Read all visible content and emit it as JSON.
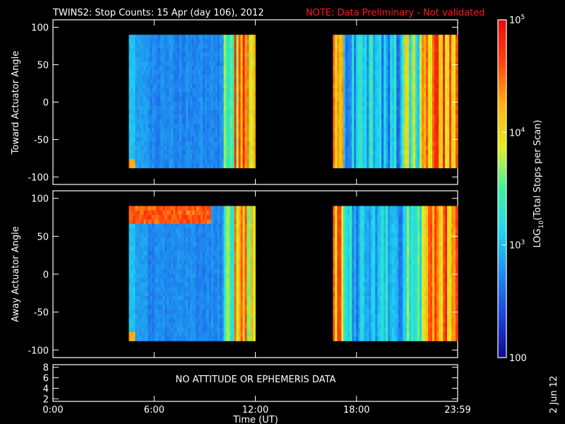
{
  "title": {
    "main": "TWINS2: Stop Counts: 15 Apr (day 106), 2012",
    "note": "NOTE: Data Preliminary - Not validated"
  },
  "date_stamp": "2 Jun 12",
  "no_data_message": "NO ATTITUDE OR EPHEMERIS DATA",
  "colorbar": {
    "label": "LOG10(Total Stops per Scan)",
    "label_base": "LOG",
    "label_sub": "10",
    "label_rest": "(Total Stops per Scan)",
    "ticks": [
      {
        "value": 100,
        "label": "100"
      },
      {
        "value": 1000,
        "label": "10",
        "exp": "3"
      },
      {
        "value": 10000,
        "label": "10",
        "exp": "4"
      },
      {
        "value": 100000,
        "label": "10",
        "exp": "5"
      }
    ],
    "range": [
      100,
      100000
    ],
    "scale": "log",
    "colors": [
      "#0a0a8c",
      "#1f3fe0",
      "#1f8cf0",
      "#20d8f0",
      "#40f0a0",
      "#e0f020",
      "#ffb010",
      "#ff4010",
      "#e80a0a"
    ]
  },
  "chart_data": [
    {
      "type": "heatmap",
      "ylabel": "Toward Actuator Angle",
      "ylim": [
        -110,
        110
      ],
      "yticks": [
        "-100",
        "-50",
        "0",
        "50",
        "100"
      ],
      "xlim": [
        0,
        24
      ],
      "data_segments": [
        {
          "start_hour": 4.5,
          "end_hour": 12.0
        },
        {
          "start_hour": 16.6,
          "end_hour": 24.0
        }
      ],
      "angle_range": [
        -88,
        90
      ]
    },
    {
      "type": "heatmap",
      "ylabel": "Away Actuator Angle",
      "ylim": [
        -110,
        110
      ],
      "yticks": [
        "-100",
        "-50",
        "0",
        "50",
        "100"
      ],
      "xlim": [
        0,
        24
      ],
      "data_segments": [
        {
          "start_hour": 4.5,
          "end_hour": 12.0
        },
        {
          "start_hour": 16.6,
          "end_hour": 24.0
        }
      ],
      "angle_range": [
        -88,
        90
      ]
    },
    {
      "type": "line",
      "ylim": [
        1.5,
        8.5
      ],
      "yticks": [
        "2",
        "4",
        "6",
        "8"
      ],
      "xlabel": "Time (UT)",
      "xlim": [
        0,
        24
      ],
      "xticks": [
        "0:00",
        "6:00",
        "12:00",
        "18:00",
        "23:59"
      ]
    }
  ]
}
